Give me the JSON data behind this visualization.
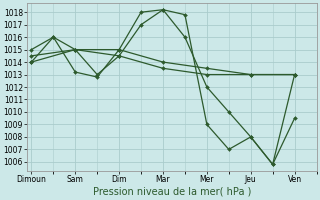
{
  "xlabel": "Pression niveau de la mer( hPa )",
  "background_color": "#cce8e8",
  "grid_color": "#aacccc",
  "line_color": "#2d5a2d",
  "ytick_labels": [
    "1006",
    "1007",
    "1008",
    "1009",
    "1010",
    "1011",
    "1012",
    "1013",
    "1014",
    "1015",
    "1016",
    "1017",
    "1018"
  ],
  "ytick_vals": [
    1006,
    1007,
    1008,
    1009,
    1010,
    1011,
    1012,
    1013,
    1014,
    1015,
    1016,
    1017,
    1018
  ],
  "xtick_labels": [
    "Dimoun",
    "Sam",
    "Dim",
    "Mar",
    "Mer",
    "Jeu",
    "Ven"
  ],
  "xtick_pos": [
    0,
    1,
    2,
    3,
    4,
    5,
    6
  ],
  "xlim": [
    -0.1,
    6.5
  ],
  "ylim": [
    1005.3,
    1018.7
  ],
  "lines": [
    {
      "x": [
        0,
        0.5,
        1,
        1.5,
        2,
        2.5,
        3,
        3.5,
        4,
        4.5,
        5,
        5.5,
        6
      ],
      "y": [
        1014,
        1016,
        1015,
        1013,
        1014.5,
        1017,
        1018.2,
        1017.8,
        1009,
        1007,
        1008,
        1005.8,
        1013
      ]
    },
    {
      "x": [
        0,
        0.5,
        1,
        1.5,
        2,
        2.5,
        3,
        3.5,
        4,
        4.5,
        5,
        5.5,
        6
      ],
      "y": [
        1015,
        1016,
        1013.2,
        1012.8,
        1015,
        1018,
        1018.2,
        1016,
        1012,
        1010,
        1008,
        1005.8,
        1009.5
      ]
    },
    {
      "x": [
        0,
        1,
        2,
        3,
        4,
        5,
        6
      ],
      "y": [
        1014.5,
        1015,
        1015,
        1014,
        1013.5,
        1013,
        1013
      ]
    },
    {
      "x": [
        0,
        1,
        2,
        3,
        4,
        5,
        6
      ],
      "y": [
        1014,
        1015,
        1014.5,
        1013.5,
        1013,
        1013,
        1013
      ]
    }
  ]
}
